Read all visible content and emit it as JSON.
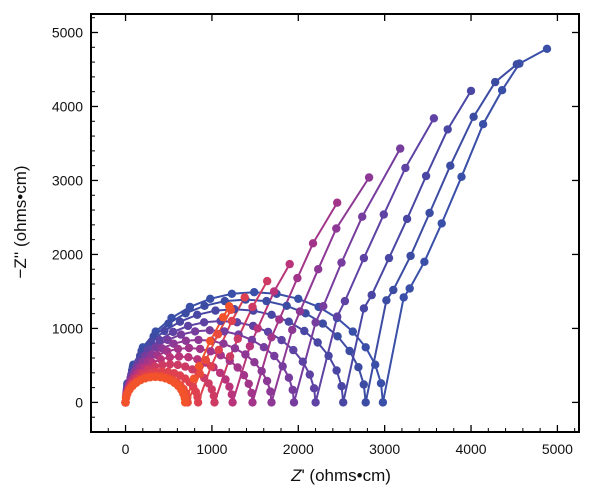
{
  "chart_data": {
    "type": "scatter",
    "xlabel_italic": "Z",
    "xlabel_rest": "' (ohms•cm)",
    "ylabel": "−Z'' (ohms•cm)",
    "xlim": [
      -400,
      5250
    ],
    "ylim": [
      -400,
      5250
    ],
    "xticks": [
      0,
      1000,
      2000,
      3000,
      4000,
      5000
    ],
    "yticks": [
      0,
      1000,
      2000,
      3000,
      4000,
      5000
    ],
    "xtick_labels": [
      "0",
      "1000",
      "2000",
      "3000",
      "4000",
      "5000"
    ],
    "ytick_labels": [
      "0",
      "1000",
      "2000",
      "3000",
      "4000",
      "5000"
    ],
    "grid": false,
    "series": [
      {
        "color": "#3a4fa8",
        "r0": 0,
        "r1": 2980,
        "knee": [
          3220,
          1420
        ],
        "tail": [
          [
            3290,
            1540
          ],
          [
            3460,
            1900
          ],
          [
            3660,
            2420
          ],
          [
            3890,
            3050
          ],
          [
            4140,
            3760
          ],
          [
            4360,
            4220
          ],
          [
            4560,
            4580
          ],
          [
            4880,
            4780
          ]
        ]
      },
      {
        "color": "#3d4ca3",
        "r0": 0,
        "r1": 2780,
        "knee": [
          3020,
          1380
        ],
        "tail": [
          [
            3100,
            1520
          ],
          [
            3300,
            1980
          ],
          [
            3520,
            2560
          ],
          [
            3760,
            3200
          ],
          [
            4030,
            3860
          ],
          [
            4280,
            4330
          ],
          [
            4530,
            4570
          ]
        ]
      },
      {
        "color": "#4a47a4",
        "r0": 0,
        "r1": 2520,
        "knee": [
          2760,
          1270
        ],
        "tail": [
          [
            2850,
            1450
          ],
          [
            3050,
            1950
          ],
          [
            3260,
            2480
          ],
          [
            3480,
            3060
          ],
          [
            3730,
            3690
          ],
          [
            4000,
            4210
          ]
        ]
      },
      {
        "color": "#5e42a4",
        "r0": 0,
        "r1": 2200,
        "knee": [
          2450,
          1160
        ],
        "tail": [
          [
            2540,
            1370
          ],
          [
            2760,
            1950
          ],
          [
            2990,
            2540
          ],
          [
            3240,
            3170
          ],
          [
            3570,
            3840
          ]
        ]
      },
      {
        "color": "#763c9e",
        "r0": 0,
        "r1": 1950,
        "knee": [
          2200,
          1080
        ],
        "tail": [
          [
            2290,
            1300
          ],
          [
            2500,
            1890
          ],
          [
            2740,
            2510
          ],
          [
            3180,
            3430
          ]
        ]
      },
      {
        "color": "#8c3894",
        "r0": 0,
        "r1": 1690,
        "knee": [
          1930,
          980
        ],
        "tail": [
          [
            2020,
            1230
          ],
          [
            2230,
            1800
          ],
          [
            2440,
            2350
          ],
          [
            2820,
            3040
          ]
        ]
      },
      {
        "color": "#a23589",
        "r0": 0,
        "r1": 1470,
        "knee": [
          1690,
          880
        ],
        "tail": [
          [
            1780,
            1120
          ],
          [
            1990,
            1680
          ],
          [
            2170,
            2150
          ],
          [
            2450,
            2700
          ]
        ]
      },
      {
        "color": "#b9347a",
        "r0": 0,
        "r1": 1240,
        "knee": [
          1440,
          760
        ],
        "tail": [
          [
            1530,
            1000
          ],
          [
            1720,
            1500
          ],
          [
            1900,
            1870
          ]
        ]
      },
      {
        "color": "#cd3a63",
        "r0": 0,
        "r1": 1030,
        "knee": [
          1210,
          620
        ],
        "tail": [
          [
            1300,
            860
          ],
          [
            1470,
            1290
          ],
          [
            1640,
            1640
          ]
        ]
      },
      {
        "color": "#de404f",
        "r0": 0,
        "r1": 840,
        "knee": [
          990,
          490
        ],
        "tail": [
          [
            1080,
            710
          ],
          [
            1230,
            1100
          ],
          [
            1380,
            1420
          ]
        ]
      },
      {
        "color": "#ea4a3b",
        "r0": 0,
        "r1": 720,
        "knee": [
          860,
          390
        ],
        "tail": [
          [
            930,
            570
          ],
          [
            1070,
            920
          ],
          [
            1220,
            1250
          ]
        ]
      },
      {
        "color": "#f2532a",
        "r0": 0,
        "r1": 690,
        "knee": [
          790,
          320
        ],
        "tail": [
          [
            850,
            490
          ],
          [
            980,
            830
          ],
          [
            1130,
            1150
          ],
          [
            1200,
            1300
          ]
        ]
      }
    ]
  }
}
